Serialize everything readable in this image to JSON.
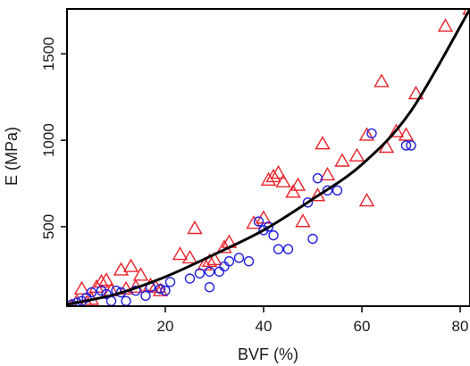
{
  "chart_data": {
    "type": "scatter",
    "title": "",
    "xlabel": "BVF (%)",
    "ylabel": "E (MPa)",
    "xlim": [
      0,
      82
    ],
    "ylim": [
      40,
      1760
    ],
    "x_ticks": [
      20,
      40,
      60,
      80
    ],
    "y_ticks": [
      500,
      1000,
      1500
    ],
    "grid": false,
    "legend": "none",
    "series": [
      {
        "marker": "triangle",
        "color": "#e8232a",
        "points": [
          [
            1,
            40
          ],
          [
            2,
            65
          ],
          [
            3,
            140
          ],
          [
            4,
            60
          ],
          [
            5,
            80
          ],
          [
            6,
            150
          ],
          [
            7,
            180
          ],
          [
            8,
            190
          ],
          [
            9,
            130
          ],
          [
            11,
            250
          ],
          [
            12,
            140
          ],
          [
            13,
            270
          ],
          [
            14,
            150
          ],
          [
            15,
            220
          ],
          [
            17,
            160
          ],
          [
            18,
            150
          ],
          [
            19,
            130
          ],
          [
            23,
            340
          ],
          [
            25,
            320
          ],
          [
            26,
            490
          ],
          [
            28,
            280
          ],
          [
            29,
            300
          ],
          [
            30,
            310
          ],
          [
            32,
            380
          ],
          [
            33,
            410
          ],
          [
            38,
            520
          ],
          [
            40,
            550
          ],
          [
            41,
            770
          ],
          [
            42,
            790
          ],
          [
            43,
            810
          ],
          [
            44,
            760
          ],
          [
            46,
            700
          ],
          [
            47,
            740
          ],
          [
            48,
            530
          ],
          [
            51,
            680
          ],
          [
            52,
            980
          ],
          [
            53,
            800
          ],
          [
            56,
            880
          ],
          [
            59,
            910
          ],
          [
            61,
            1030
          ],
          [
            61,
            650
          ],
          [
            64,
            1340
          ],
          [
            65,
            960
          ],
          [
            67,
            1050
          ],
          [
            69,
            1030
          ],
          [
            71,
            1270
          ],
          [
            77,
            1660
          ],
          [
            82,
            1760
          ]
        ]
      },
      {
        "marker": "circle",
        "color": "#1f1fe0",
        "points": [
          [
            1,
            50
          ],
          [
            2,
            60
          ],
          [
            3,
            70
          ],
          [
            4,
            90
          ],
          [
            5,
            120
          ],
          [
            7,
            130
          ],
          [
            8,
            110
          ],
          [
            9,
            70
          ],
          [
            10,
            130
          ],
          [
            11,
            120
          ],
          [
            12,
            70
          ],
          [
            14,
            130
          ],
          [
            16,
            100
          ],
          [
            17,
            150
          ],
          [
            19,
            140
          ],
          [
            20,
            130
          ],
          [
            21,
            180
          ],
          [
            25,
            200
          ],
          [
            27,
            230
          ],
          [
            29,
            150
          ],
          [
            29,
            240
          ],
          [
            31,
            240
          ],
          [
            32,
            270
          ],
          [
            33,
            300
          ],
          [
            35,
            320
          ],
          [
            37,
            300
          ],
          [
            39,
            530
          ],
          [
            40,
            480
          ],
          [
            41,
            500
          ],
          [
            42,
            450
          ],
          [
            43,
            370
          ],
          [
            45,
            370
          ],
          [
            49,
            640
          ],
          [
            50,
            430
          ],
          [
            51,
            780
          ],
          [
            53,
            710
          ],
          [
            55,
            710
          ],
          [
            62,
            1040
          ],
          [
            69,
            970
          ],
          [
            70,
            970
          ]
        ]
      }
    ],
    "fit_curve": {
      "color": "#000000",
      "x": [
        0,
        10,
        20,
        30,
        40,
        50,
        60,
        70,
        82
      ],
      "y": [
        50,
        110,
        210,
        340,
        480,
        660,
        860,
        1170,
        1760
      ]
    }
  }
}
